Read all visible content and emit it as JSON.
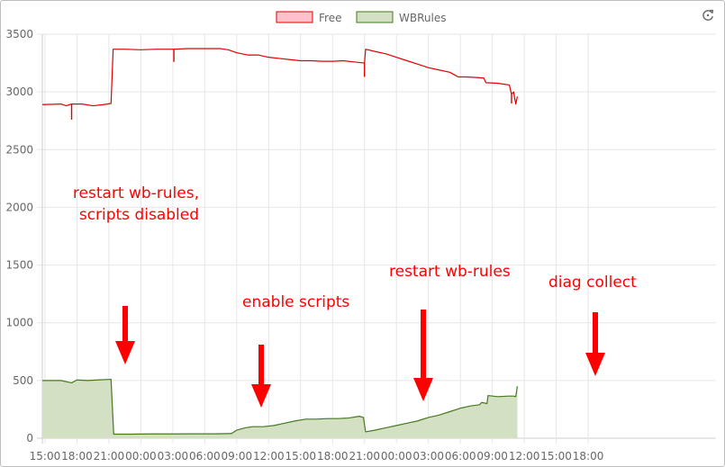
{
  "chart_data": {
    "type": "area",
    "title": "",
    "xlabel": "",
    "ylabel": "",
    "ylim": [
      0,
      3500
    ],
    "yticks": [
      0,
      500,
      1000,
      1500,
      2000,
      2500,
      3000,
      3500
    ],
    "grid": true,
    "legend_position": "top-center",
    "x_unit": "hours from start (15:00 day 1)",
    "x_range": [
      -0.25,
      63
    ],
    "x_tick_labels": [
      {
        "x": 0,
        "label": "15:00"
      },
      {
        "x": 3,
        "label": "18:00"
      },
      {
        "x": 6,
        "label": "21:00"
      },
      {
        "x": 9,
        "label": "00:00"
      },
      {
        "x": 12,
        "label": "03:00"
      },
      {
        "x": 15,
        "label": "06:00"
      },
      {
        "x": 18,
        "label": "09:00"
      },
      {
        "x": 21,
        "label": "12:00"
      },
      {
        "x": 24,
        "label": "15:00"
      },
      {
        "x": 27,
        "label": "18:00"
      },
      {
        "x": 30,
        "label": "21:00"
      },
      {
        "x": 33,
        "label": "00:00"
      },
      {
        "x": 36,
        "label": "03:00"
      },
      {
        "x": 39,
        "label": "06:00"
      },
      {
        "x": 42,
        "label": "09:00"
      },
      {
        "x": 45,
        "label": "12:00"
      },
      {
        "x": 48,
        "label": "15:00"
      },
      {
        "x": 51,
        "label": "18:00"
      }
    ],
    "series": [
      {
        "name": "Free",
        "color": "#e00000",
        "fill": "#ffc0cb",
        "filled": false,
        "points": [
          [
            -0.25,
            2890
          ],
          [
            1.5,
            2895
          ],
          [
            2.0,
            2880
          ],
          [
            2.5,
            2895
          ],
          [
            3.5,
            2895
          ],
          [
            4.5,
            2880
          ],
          [
            5.5,
            2890
          ],
          [
            6.2,
            2900
          ],
          [
            6.4,
            3370
          ],
          [
            7.5,
            3370
          ],
          [
            9.0,
            3365
          ],
          [
            10.5,
            3370
          ],
          [
            12.0,
            3370
          ],
          [
            13.5,
            3375
          ],
          [
            15.0,
            3375
          ],
          [
            16.5,
            3375
          ],
          [
            17.2,
            3365
          ],
          [
            18.0,
            3340
          ],
          [
            19.0,
            3320
          ],
          [
            20.0,
            3320
          ],
          [
            21.0,
            3300
          ],
          [
            22.0,
            3290
          ],
          [
            23.0,
            3280
          ],
          [
            24.0,
            3270
          ],
          [
            25.0,
            3270
          ],
          [
            26.0,
            3265
          ],
          [
            27.0,
            3265
          ],
          [
            28.0,
            3270
          ],
          [
            29.0,
            3260
          ],
          [
            30.0,
            3250
          ],
          [
            30.1,
            3370
          ],
          [
            31.0,
            3350
          ],
          [
            32.0,
            3330
          ],
          [
            33.0,
            3300
          ],
          [
            34.0,
            3270
          ],
          [
            35.0,
            3240
          ],
          [
            36.0,
            3210
          ],
          [
            37.0,
            3190
          ],
          [
            38.0,
            3170
          ],
          [
            38.8,
            3130
          ],
          [
            39.5,
            3130
          ],
          [
            40.5,
            3125
          ],
          [
            41.2,
            3120
          ],
          [
            41.4,
            3080
          ],
          [
            42.5,
            3075
          ],
          [
            43.6,
            3060
          ],
          [
            43.8,
            2980
          ],
          [
            44.0,
            3000
          ],
          [
            44.2,
            2895
          ],
          [
            44.35,
            2960
          ]
        ],
        "dips": [
          [
            2.5,
            2760
          ],
          [
            12.1,
            3260
          ],
          [
            30.0,
            3130
          ],
          [
            43.8,
            2900
          ]
        ]
      },
      {
        "name": "WBRules",
        "color": "#447a1e",
        "fill": "#d3e0c4",
        "filled": true,
        "points": [
          [
            -0.25,
            500
          ],
          [
            1.5,
            500
          ],
          [
            2.5,
            480
          ],
          [
            3.0,
            505
          ],
          [
            4.0,
            500
          ],
          [
            5.0,
            505
          ],
          [
            6.2,
            510
          ],
          [
            6.45,
            35
          ],
          [
            8.0,
            35
          ],
          [
            10.0,
            37
          ],
          [
            12.0,
            37
          ],
          [
            14.0,
            38
          ],
          [
            16.0,
            38
          ],
          [
            17.5,
            40
          ],
          [
            18.0,
            70
          ],
          [
            18.8,
            90
          ],
          [
            19.5,
            100
          ],
          [
            20.5,
            100
          ],
          [
            21.5,
            110
          ],
          [
            22.5,
            130
          ],
          [
            23.5,
            150
          ],
          [
            24.5,
            165
          ],
          [
            25.5,
            165
          ],
          [
            26.5,
            170
          ],
          [
            27.5,
            170
          ],
          [
            28.5,
            175
          ],
          [
            29.5,
            190
          ],
          [
            29.9,
            180
          ],
          [
            30.1,
            55
          ],
          [
            31.0,
            70
          ],
          [
            32.0,
            90
          ],
          [
            33.0,
            110
          ],
          [
            34.0,
            130
          ],
          [
            35.0,
            150
          ],
          [
            36.0,
            180
          ],
          [
            37.0,
            200
          ],
          [
            38.0,
            230
          ],
          [
            39.0,
            260
          ],
          [
            40.0,
            280
          ],
          [
            40.8,
            290
          ],
          [
            41.0,
            310
          ],
          [
            41.5,
            300
          ],
          [
            41.6,
            370
          ],
          [
            42.5,
            360
          ],
          [
            43.5,
            365
          ],
          [
            44.0,
            365
          ],
          [
            44.2,
            360
          ],
          [
            44.35,
            450
          ]
        ]
      }
    ],
    "annotations": [
      {
        "lines": [
          "restart wb-rules,",
          "scripts disabled"
        ],
        "align": "right"
      },
      {
        "lines": [
          "enable scripts"
        ],
        "align": "left"
      },
      {
        "lines": [
          "restart wb-rules"
        ],
        "align": "left"
      },
      {
        "lines": [
          "diag collect"
        ],
        "align": "left"
      }
    ],
    "annotation_color": "#ff0000"
  },
  "toolbar": {
    "refresh_icon": "refresh-icon"
  }
}
